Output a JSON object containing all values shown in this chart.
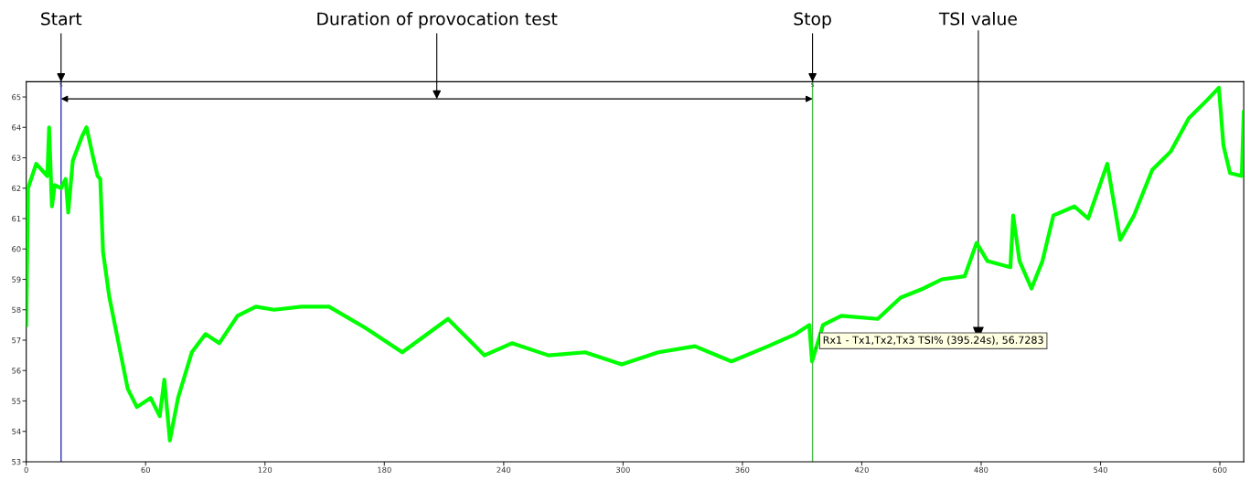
{
  "chart_data": {
    "type": "line",
    "x": [
      0,
      0.9,
      5,
      10.6,
      11.5,
      12.9,
      14.3,
      17.5,
      19.8,
      21.1,
      23.4,
      28,
      30.3,
      34,
      35.9,
      37.2,
      38.6,
      41.8,
      46.4,
      51,
      55.6,
      62.5,
      67.1,
      69.4,
      72.2,
      76.3,
      83.2,
      90.1,
      97,
      106.2,
      115.4,
      124.6,
      138.4,
      152.2,
      170.6,
      189,
      212,
      230.3,
      244.1,
      262.5,
      280.9,
      299.3,
      317.7,
      336.1,
      354.5,
      372.9,
      386.7,
      393.6,
      395,
      400.5,
      409.7,
      428,
      439.5,
      451,
      460.2,
      471.7,
      477.7,
      483.2,
      494.7,
      496.1,
      499.3,
      505.3,
      510.8,
      516.3,
      526.9,
      533.8,
      543.4,
      549.9,
      556.8,
      566,
      575.2,
      584.4,
      593.6,
      599.5,
      601.8,
      605.1,
      611,
      612
    ],
    "series": [
      {
        "color": "#00ff00",
        "values": [
          57.5,
          62.0,
          62.8,
          62.4,
          64.0,
          61.4,
          62.1,
          62.0,
          62.3,
          61.2,
          62.9,
          63.7,
          64.0,
          62.9,
          62.4,
          62.3,
          59.9,
          58.4,
          56.9,
          55.4,
          54.8,
          55.1,
          54.5,
          55.7,
          53.7,
          55.1,
          56.6,
          57.2,
          56.9,
          57.8,
          58.1,
          58.0,
          58.1,
          58.1,
          57.4,
          56.6,
          57.7,
          56.5,
          56.9,
          56.5,
          56.6,
          56.2,
          56.6,
          56.8,
          56.3,
          56.8,
          57.2,
          57.5,
          56.3,
          57.5,
          57.8,
          57.7,
          58.4,
          58.7,
          59.0,
          59.1,
          60.2,
          59.6,
          59.4,
          61.1,
          59.6,
          58.7,
          59.6,
          61.1,
          61.4,
          61.0,
          62.8,
          60.3,
          61.1,
          62.6,
          63.2,
          64.3,
          64.9,
          65.3,
          63.4,
          62.5,
          62.4,
          64.5
        ]
      }
    ],
    "xlim": [
      0,
      612
    ],
    "xticks": [
      0,
      60,
      120,
      180,
      240,
      300,
      360,
      420,
      480,
      540,
      600
    ],
    "ylim": [
      53,
      65.5
    ],
    "yticks": [
      53,
      54,
      55,
      56,
      57,
      58,
      59,
      60,
      61,
      62,
      63,
      64,
      65
    ],
    "grid": false,
    "legend": false,
    "marker": "none",
    "line_style": "solid",
    "ref_lines": [
      {
        "axis": "x",
        "value": 17.5,
        "label": "s",
        "color": "#3333bb"
      },
      {
        "axis": "x",
        "value": 395.24,
        "label": "s",
        "color": "#44bb44"
      }
    ],
    "annotations": [
      "Start",
      "Duration of provocation test",
      "Stop",
      "TSI value",
      {
        "text": "Rx1 - Tx1,Tx2,Tx3 TSI% (395.24s), 56.7283",
        "x": 395.24,
        "y": 56.7283
      }
    ]
  }
}
